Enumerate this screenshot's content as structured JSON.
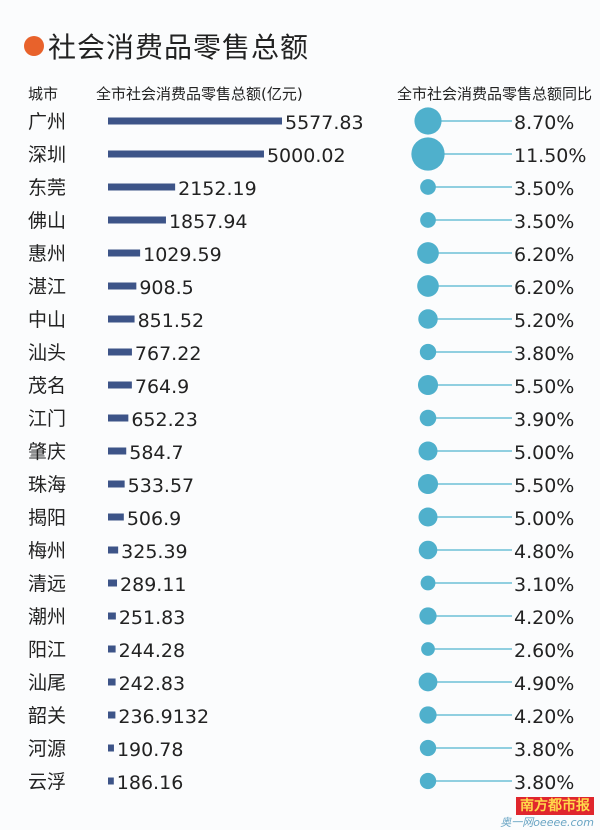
{
  "title": "社会消费品零售总额",
  "watermark": {
    "brand": "南方都市报",
    "site": "奥一网oeeee.com"
  },
  "colors": {
    "bar": "#3d5488",
    "bubble": "#4fb0cc",
    "line": "#6cc0d6",
    "title_dot": "#e8622b"
  },
  "chart_data": {
    "type": "bar",
    "title": "社会消费品零售总额",
    "headers": [
      "城市",
      "全市社会消费品零售总额(亿元)",
      "全市社会消费品零售总额同比"
    ],
    "categories": [
      "广州",
      "深圳",
      "东莞",
      "佛山",
      "惠州",
      "湛江",
      "中山",
      "汕头",
      "茂名",
      "江门",
      "肇庆",
      "珠海",
      "揭阳",
      "梅州",
      "清远",
      "潮州",
      "阳江",
      "汕尾",
      "韶关",
      "河源",
      "云浮"
    ],
    "series": [
      {
        "name": "全市社会消费品零售总额(亿元)",
        "values": [
          5577.83,
          5000.02,
          2152.19,
          1857.94,
          1029.59,
          908.5,
          851.52,
          767.22,
          764.9,
          652.23,
          584.7,
          533.57,
          506.9,
          325.39,
          289.11,
          251.83,
          244.28,
          242.83,
          236.9132,
          190.78,
          186.16
        ],
        "labels": [
          "5577.83",
          "5000.02",
          "2152.19",
          "1857.94",
          "1029.59",
          "908.5",
          "851.52",
          "767.22",
          "764.9",
          "652.23",
          "584.7",
          "533.57",
          "506.9",
          "325.39",
          "289.11",
          "251.83",
          "244.28",
          "242.83",
          "236.9132",
          "190.78",
          "186.16"
        ]
      },
      {
        "name": "全市社会消费品零售总额同比",
        "values": [
          8.7,
          11.5,
          3.5,
          3.5,
          6.2,
          6.2,
          5.2,
          3.8,
          5.5,
          3.9,
          5.0,
          5.5,
          5.0,
          4.8,
          3.1,
          4.2,
          2.6,
          4.9,
          4.2,
          3.8,
          3.8
        ],
        "labels": [
          "8.70%",
          "11.50%",
          "3.50%",
          "3.50%",
          "6.20%",
          "6.20%",
          "5.20%",
          "3.80%",
          "5.50%",
          "3.90%",
          "5.00%",
          "5.50%",
          "5.00%",
          "4.80%",
          "3.10%",
          "4.20%",
          "2.60%",
          "4.90%",
          "4.20%",
          "3.80%",
          "3.80%"
        ]
      }
    ]
  }
}
